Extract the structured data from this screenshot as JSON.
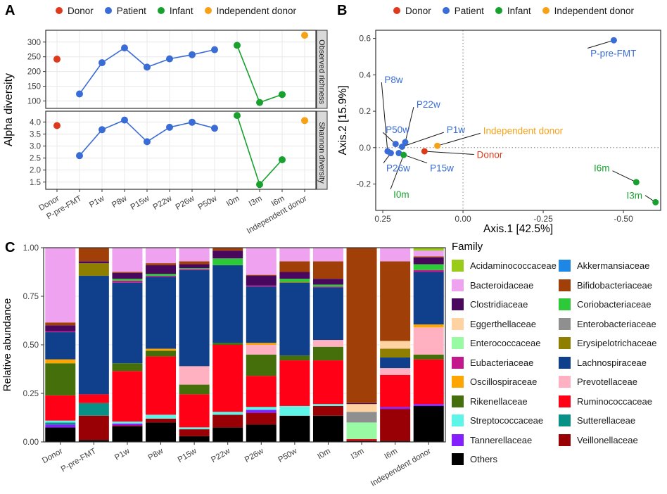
{
  "figure": {
    "panel_a_letter": "A",
    "panel_b_letter": "B",
    "panel_c_letter": "C"
  },
  "group_colors": {
    "Donor": "#DC3A1B",
    "Patient": "#3A6CD6",
    "Infant": "#18A12E",
    "Independent donor": "#F7A118"
  },
  "group_legend": [
    "Donor",
    "Patient",
    "Infant",
    "Independent donor"
  ],
  "chart_data": [
    {
      "panel": "A",
      "type": "line",
      "ylabel": "Alpha diversity",
      "categories": [
        "Donor",
        "P-pre-FMT",
        "P1w",
        "P8w",
        "P15w",
        "P22w",
        "P26w",
        "P50w",
        "I0m",
        "I3m",
        "I6m",
        "Independent donor"
      ],
      "category_groups": [
        "Donor",
        "Patient",
        "Patient",
        "Patient",
        "Patient",
        "Patient",
        "Patient",
        "Patient",
        "Infant",
        "Infant",
        "Infant",
        "Independent donor"
      ],
      "facets": [
        {
          "strip": "Observed richness",
          "ylim": [
            75,
            340
          ],
          "ticks": [
            [
              100,
              "100"
            ],
            [
              150,
              "150"
            ],
            [
              200,
              "200"
            ],
            [
              250,
              "250"
            ],
            [
              300,
              "300"
            ]
          ],
          "values": [
            242,
            124,
            230,
            280,
            215,
            243,
            257,
            274,
            289,
            95,
            122,
            323
          ]
        },
        {
          "strip": "Shannon diversity",
          "ylim": [
            1.2,
            4.45
          ],
          "ticks": [
            [
              1.5,
              "1.5"
            ],
            [
              2.0,
              "2.0"
            ],
            [
              2.5,
              "2.5"
            ],
            [
              3.0,
              "3.0"
            ],
            [
              3.5,
              "3.5"
            ],
            [
              4.0,
              "4.0"
            ]
          ],
          "values": [
            3.85,
            2.6,
            3.68,
            4.08,
            3.18,
            3.78,
            3.99,
            3.74,
            4.27,
            1.4,
            2.43,
            4.06
          ]
        }
      ],
      "line_groups": [
        {
          "group": "Patient",
          "indices": [
            1,
            2,
            3,
            4,
            5,
            6,
            7
          ]
        },
        {
          "group": "Infant",
          "indices": [
            8,
            9,
            10
          ]
        }
      ]
    },
    {
      "panel": "B",
      "type": "scatter",
      "xlabel": "Axis.1 [42.5%]",
      "ylabel": "Axis.2 [15.9%]",
      "xlim": [
        0.272,
        -0.616
      ],
      "ylim": [
        -0.345,
        0.645
      ],
      "xticks": [
        [
          0.25,
          "0.25"
        ],
        [
          0.0,
          "0.00"
        ],
        [
          -0.25,
          "-0.25"
        ],
        [
          -0.5,
          "-0.50"
        ]
      ],
      "yticks": [
        [
          -0.2,
          "-0.2"
        ],
        [
          0.0,
          "0.0"
        ],
        [
          0.2,
          "0.2"
        ],
        [
          0.4,
          "0.4"
        ],
        [
          0.6,
          "0.6"
        ]
      ],
      "refline_x": 0.0,
      "refline_y": 0.0,
      "points": [
        {
          "label": "Donor",
          "group": "Donor",
          "x": 0.12,
          "y": -0.02,
          "lx": -0.043,
          "ly": -0.057,
          "anchor": "start"
        },
        {
          "label": "P-pre-FMT",
          "group": "Patient",
          "x": -0.47,
          "y": 0.59,
          "lx": -0.397,
          "ly": 0.5,
          "anchor": "start"
        },
        {
          "label": "P1w",
          "group": "Patient",
          "x": 0.19,
          "y": 0.005,
          "lx": 0.051,
          "ly": 0.08,
          "anchor": "start"
        },
        {
          "label": "P8w",
          "group": "Patient",
          "x": 0.235,
          "y": -0.02,
          "lx": 0.245,
          "ly": 0.355,
          "anchor": "start"
        },
        {
          "label": "P15w",
          "group": "Patient",
          "x": 0.2,
          "y": -0.03,
          "lx": 0.103,
          "ly": -0.131,
          "anchor": "start"
        },
        {
          "label": "P22w",
          "group": "Patient",
          "x": 0.18,
          "y": 0.03,
          "lx": 0.145,
          "ly": 0.219,
          "anchor": "start"
        },
        {
          "label": "P26w",
          "group": "Patient",
          "x": 0.225,
          "y": -0.03,
          "lx": 0.239,
          "ly": -0.131,
          "anchor": "start"
        },
        {
          "label": "P50w",
          "group": "Patient",
          "x": 0.21,
          "y": 0.02,
          "lx": 0.241,
          "ly": 0.08,
          "anchor": "start"
        },
        {
          "label": "I0m",
          "group": "Infant",
          "x": 0.185,
          "y": -0.04,
          "lx": 0.217,
          "ly": -0.275,
          "anchor": "start"
        },
        {
          "label": "I3m",
          "group": "Infant",
          "x": -0.6,
          "y": -0.3,
          "lx": -0.559,
          "ly": -0.282,
          "anchor": "end"
        },
        {
          "label": "I6m",
          "group": "Infant",
          "x": -0.54,
          "y": -0.19,
          "lx": -0.457,
          "ly": -0.131,
          "anchor": "end"
        },
        {
          "label": "Independent donor",
          "group": "Independent donor",
          "x": 0.08,
          "y": 0.01,
          "lx": -0.063,
          "ly": 0.075,
          "anchor": "start"
        }
      ]
    },
    {
      "panel": "C",
      "type": "bar",
      "ylabel": "Relative abundance",
      "yticks": [
        [
          0,
          "0.00"
        ],
        [
          0.25,
          "0.25"
        ],
        [
          0.5,
          "0.50"
        ],
        [
          0.75,
          "0.75"
        ],
        [
          1,
          "1.00"
        ]
      ],
      "ylim": [
        0,
        1
      ],
      "stack_order": [
        "Others",
        "Veillonellaceae",
        "Tannerellaceae",
        "Sutterellaceae",
        "Streptococcaceae",
        "Ruminococcaceae",
        "Rikenellaceae",
        "Prevotellaceae",
        "Oscillospiraceae",
        "Lachnospiraceae",
        "Eubacteriaceae",
        "Erysipelotrichaceae",
        "Enterococcaceae",
        "Enterobacteriaceae",
        "Eggerthellaceae",
        "Coriobacteriaceae",
        "Clostridiaceae",
        "Bifidobacteriaceae",
        "Bacteroidaceae",
        "Akkermansiaceae",
        "Acidaminococcaceae"
      ],
      "bars": [
        {
          "label": "Donor",
          "segments": {
            "Others": 0.075,
            "Tannerellaceae": 0.015,
            "Sutterellaceae": 0.01,
            "Streptococcaceae": 0.01,
            "Ruminococcaceae": 0.13,
            "Rikenellaceae": 0.165,
            "Oscillospiraceae": 0.02,
            "Lachnospiraceae": 0.14,
            "Eubacteriaceae": 0.005,
            "Clostridiaceae": 0.03,
            "Bifidobacteriaceae": 0.015,
            "Bacteroidaceae": 0.385
          }
        },
        {
          "label": "P-pre-FMT",
          "segments": {
            "Others": 0.01,
            "Veillonellaceae": 0.125,
            "Sutterellaceae": 0.065,
            "Ruminococcaceae": 0.045,
            "Lachnospiraceae": 0.61,
            "Erysipelotrichaceae": 0.065,
            "Clostridiaceae": 0.01,
            "Bifidobacteriaceae": 0.07
          }
        },
        {
          "label": "P1w",
          "segments": {
            "Others": 0.08,
            "Veillonellaceae": 0.005,
            "Tannerellaceae": 0.01,
            "Streptococcaceae": 0.01,
            "Ruminococcaceae": 0.26,
            "Rikenellaceae": 0.04,
            "Lachnospiraceae": 0.415,
            "Eubacteriaceae": 0.01,
            "Coriobacteriaceae": 0.01,
            "Clostridiaceae": 0.03,
            "Bifidobacteriaceae": 0.005,
            "Bacteroidaceae": 0.125
          }
        },
        {
          "label": "P8w",
          "segments": {
            "Others": 0.1,
            "Veillonellaceae": 0.02,
            "Streptococcaceae": 0.02,
            "Ruminococcaceae": 0.3,
            "Rikenellaceae": 0.03,
            "Oscillospiraceae": 0.01,
            "Lachnospiraceae": 0.37,
            "Eubacteriaceae": 0.005,
            "Coriobacteriaceae": 0.01,
            "Clostridiaceae": 0.045,
            "Bifidobacteriaceae": 0.01,
            "Bacteroidaceae": 0.08
          }
        },
        {
          "label": "P15w",
          "segments": {
            "Others": 0.03,
            "Veillonellaceae": 0.035,
            "Streptococcaceae": 0.01,
            "Ruminococcaceae": 0.17,
            "Rikenellaceae": 0.05,
            "Prevotellaceae": 0.095,
            "Lachnospiraceae": 0.495,
            "Eubacteriaceae": 0.005,
            "Coriobacteriaceae": 0.005,
            "Clostridiaceae": 0.02,
            "Bifidobacteriaceae": 0.015,
            "Bacteroidaceae": 0.07
          }
        },
        {
          "label": "P22w",
          "segments": {
            "Others": 0.075,
            "Veillonellaceae": 0.065,
            "Streptococcaceae": 0.015,
            "Ruminococcaceae": 0.345,
            "Rikenellaceae": 0.01,
            "Lachnospiraceae": 0.4,
            "Coriobacteriaceae": 0.035,
            "Clostridiaceae": 0.04,
            "Bifidobacteriaceae": 0.015
          }
        },
        {
          "label": "P26w",
          "segments": {
            "Others": 0.09,
            "Veillonellaceae": 0.06,
            "Tannerellaceae": 0.015,
            "Streptococcaceae": 0.015,
            "Ruminococcaceae": 0.16,
            "Rikenellaceae": 0.11,
            "Prevotellaceae": 0.05,
            "Oscillospiraceae": 0.01,
            "Lachnospiraceae": 0.29,
            "Eubacteriaceae": 0.005,
            "Clostridiaceae": 0.05,
            "Bifidobacteriaceae": 0.005,
            "Bacteroidaceae": 0.14
          }
        },
        {
          "label": "P50w",
          "segments": {
            "Others": 0.135,
            "Streptococcaceae": 0.05,
            "Ruminococcaceae": 0.235,
            "Rikenellaceae": 0.025,
            "Lachnospiraceae": 0.375,
            "Erysipelotrichaceae": 0.005,
            "Coriobacteriaceae": 0.015,
            "Clostridiaceae": 0.035,
            "Bifidobacteriaceae": 0.055,
            "Bacteroidaceae": 0.07
          }
        },
        {
          "label": "I0m",
          "segments": {
            "Others": 0.135,
            "Veillonellaceae": 0.05,
            "Streptococcaceae": 0.01,
            "Ruminococcaceae": 0.225,
            "Rikenellaceae": 0.07,
            "Prevotellaceae": 0.035,
            "Lachnospiraceae": 0.27,
            "Eubacteriaceae": 0.005,
            "Coriobacteriaceae": 0.01,
            "Clostridiaceae": 0.03,
            "Bifidobacteriaceae": 0.09,
            "Bacteroidaceae": 0.07
          }
        },
        {
          "label": "I3m",
          "segments": {
            "Others": 0.005,
            "Veillonellaceae": 0.005,
            "Ruminococcaceae": 0.005,
            "Enterococcaceae": 0.085,
            "Enterobacteriaceae": 0.055,
            "Eggerthellaceae": 0.04,
            "Clostridiaceae": 0.005,
            "Bifidobacteriaceae": 0.8
          }
        },
        {
          "label": "I6m",
          "segments": {
            "Others": 0.005,
            "Veillonellaceae": 0.165,
            "Tannerellaceae": 0.01,
            "Ruminococcaceae": 0.165,
            "Prevotellaceae": 0.035,
            "Lachnospiraceae": 0.055,
            "Erysipelotrichaceae": 0.045,
            "Eggerthellaceae": 0.04,
            "Bifidobacteriaceae": 0.41,
            "Bacteroidaceae": 0.07
          }
        },
        {
          "label": "Independent donor",
          "segments": {
            "Others": 0.185,
            "Tannerellaceae": 0.01,
            "Ruminococcaceae": 0.23,
            "Rikenellaceae": 0.025,
            "Prevotellaceae": 0.14,
            "Oscillospiraceae": 0.015,
            "Lachnospiraceae": 0.27,
            "Eubacteriaceae": 0.01,
            "Coriobacteriaceae": 0.03,
            "Clostridiaceae": 0.035,
            "Bifidobacteriaceae": 0.005,
            "Bacteroidaceae": 0.03,
            "Acidaminococcaceae": 0.015
          }
        }
      ],
      "legend": {
        "title": "Family",
        "col1": [
          "Acidaminococcaceae",
          "Bacteroidaceae",
          "Clostridiaceae",
          "Eggerthellaceae",
          "Enterococcaceae",
          "Eubacteriaceae",
          "Oscillospiraceae",
          "Rikenellaceae",
          "Streptococcaceae",
          "Tannerellaceae",
          "Others"
        ],
        "col2": [
          "Akkermansiaceae",
          "Bifidobacteriaceae",
          "Coriobacteriaceae",
          "Enterobacteriaceae",
          "Erysipelotrichaceae",
          "Lachnospiraceae",
          "Prevotellaceae",
          "Ruminococcaceae",
          "Sutterellaceae",
          "Veillonellaceae"
        ]
      },
      "family_colors": {
        "Acidaminococcaceae": "#9ACB19",
        "Akkermansiaceae": "#1E87E5",
        "Bacteroidaceae": "#EEA2F0",
        "Bifidobacteriaceae": "#A04008",
        "Clostridiaceae": "#49075E",
        "Coriobacteriaceae": "#2DC938",
        "Eggerthellaceae": "#FFD3A1",
        "Enterobacteriaceae": "#8F8F8F",
        "Enterococcaceae": "#98FBA4",
        "Erysipelotrichaceae": "#8F7F00",
        "Eubacteriaceae": "#C2188C",
        "Lachnospiraceae": "#10408C",
        "Oscillospiraceae": "#FFA500",
        "Prevotellaceae": "#FFB1C1",
        "Rikenellaceae": "#456F0B",
        "Ruminococcaceae": "#FF0016",
        "Streptococcaceae": "#5CF5E8",
        "Sutterellaceae": "#089186",
        "Tannerellaceae": "#8420FF",
        "Veillonellaceae": "#980005",
        "Others": "#000000"
      }
    }
  ]
}
